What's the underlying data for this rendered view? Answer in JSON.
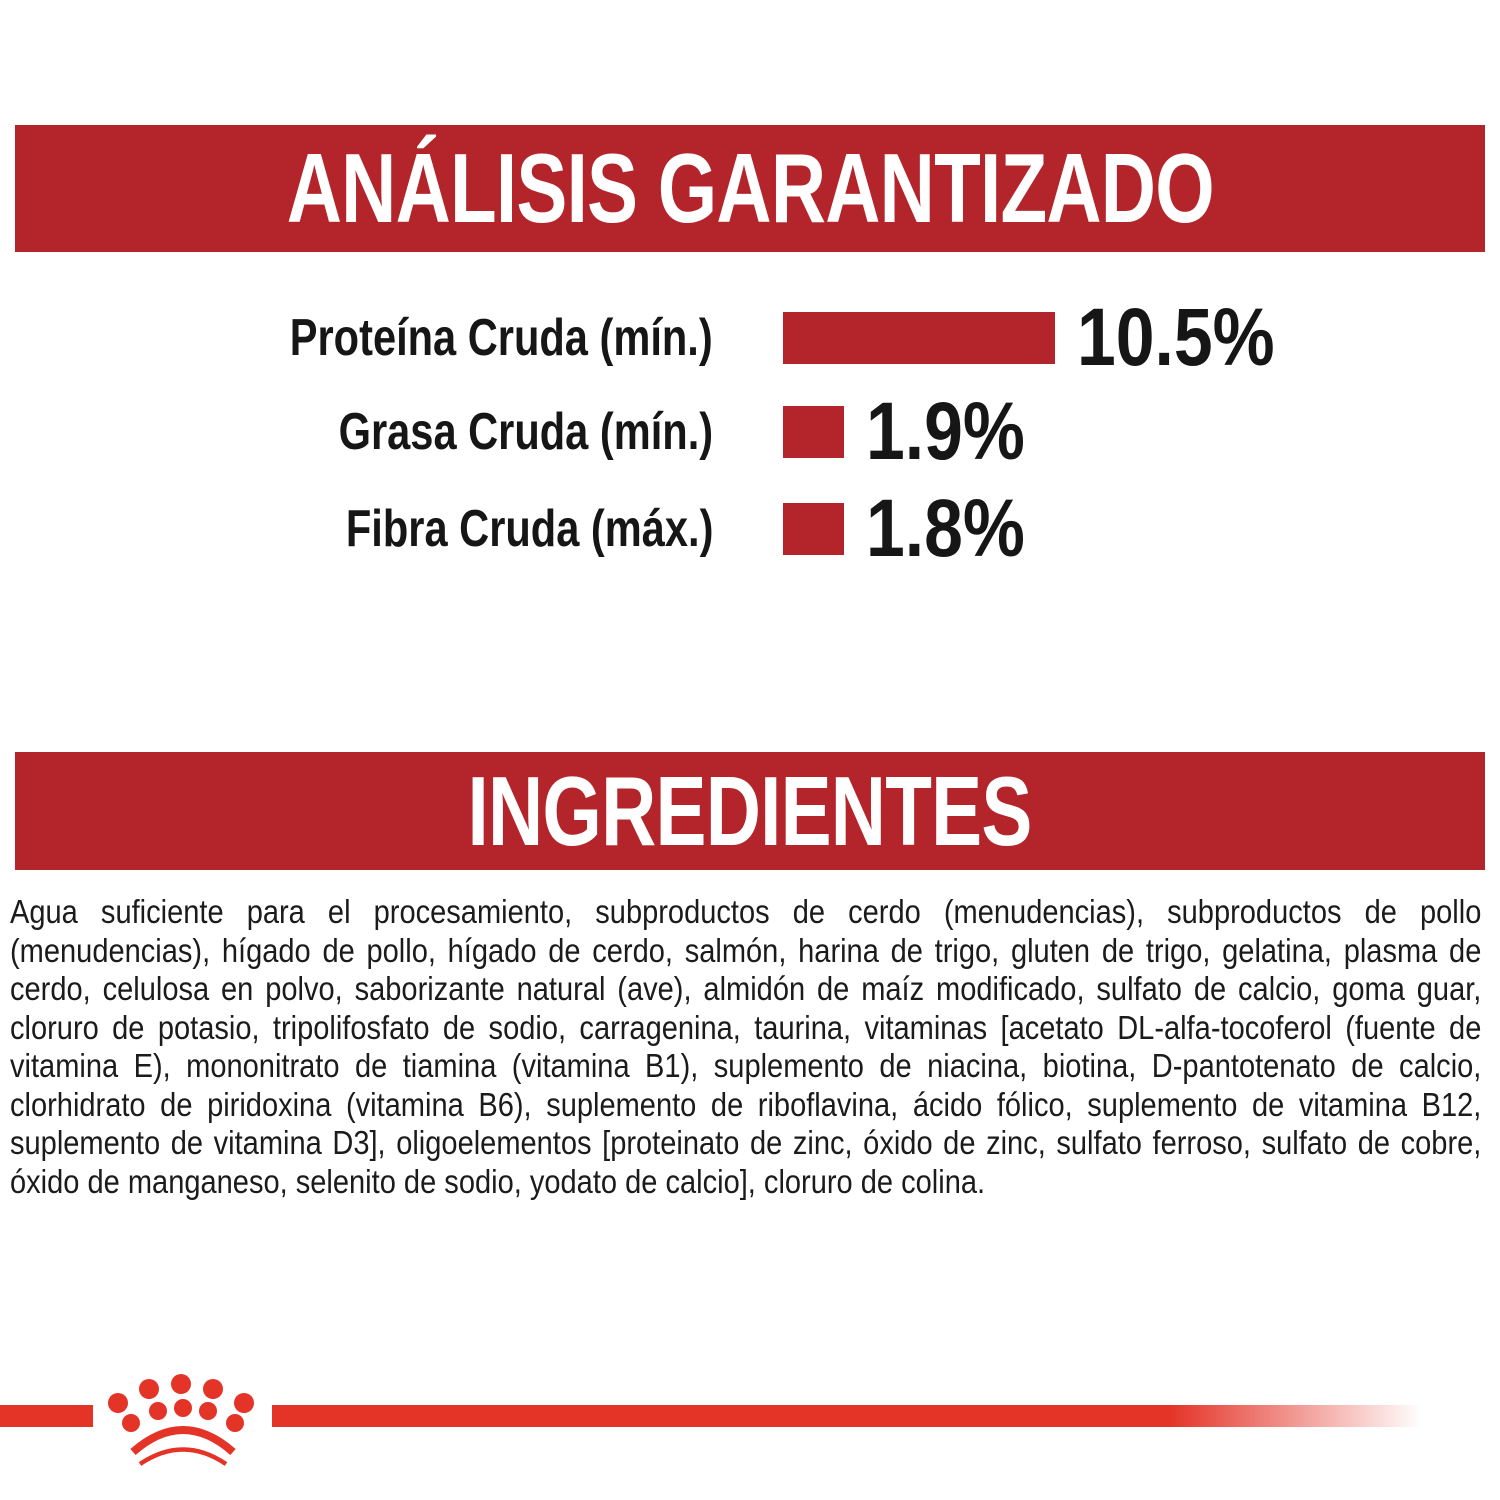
{
  "colors": {
    "banner_red": "#B4252B",
    "logo_red": "#E43327",
    "text_black": "#161616"
  },
  "analysis": {
    "title": "ANÁLISIS GARANTIZADO",
    "rows": [
      {
        "label": "Proteína Cruda (mín.)",
        "value": "10.5%",
        "percent": 10.5
      },
      {
        "label": "Grasa Cruda (mín.)",
        "value": "1.9%",
        "percent": 1.9
      },
      {
        "label": "Fibra Cruda (máx.)",
        "value": "1.8%",
        "percent": 1.8
      }
    ]
  },
  "ingredients": {
    "title": "INGREDIENTES",
    "text": "Agua suficiente para el procesamiento, subproductos de cerdo (menudencias), subproductos de pollo (menudencias), hígado de pollo, hígado de cerdo, salmón, harina de trigo, gluten de trigo, gelatina, plasma de cerdo, celulosa en polvo, saborizante natural (ave), almidón de maíz modificado, sulfato de calcio, goma guar, cloruro de potasio, tripolifosfato de sodio, carragenina, taurina, vitaminas [acetato DL-alfa-tocoferol (fuente de vitamina E), mononitrato de tiamina (vitamina B1), suplemento de niacina, biotina, D-pantotenato de calcio, clorhidrato de piridoxina (vitamina B6), suplemento de riboflavina, ácido fólico, suplemento de vitamina B12, suplemento de vitamina D3], oligoelementos [proteinato de zinc, óxido de zinc, sulfato ferroso, sulfato de cobre, óxido de manganeso, selenito de sodio, yodato de calcio], cloruro de colina."
  },
  "footer": {
    "logo": "royal-canin-crown"
  },
  "chart_data": {
    "type": "bar",
    "orientation": "horizontal",
    "title": "ANÁLISIS GARANTIZADO",
    "categories": [
      "Proteína Cruda (mín.)",
      "Grasa Cruda (mín.)",
      "Fibra Cruda (máx.)"
    ],
    "values": [
      10.5,
      1.9,
      1.8
    ],
    "value_labels": [
      "10.5%",
      "1.9%",
      "1.8%"
    ],
    "bar_color": "#B4252B",
    "grid": false,
    "legend": false
  }
}
